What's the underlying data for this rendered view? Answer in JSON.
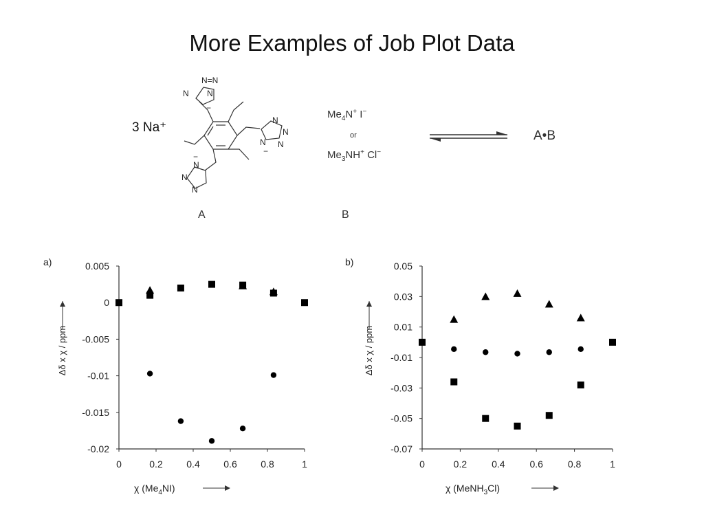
{
  "slide": {
    "title": "More Examples of Job Plot Data"
  },
  "reaction": {
    "prefix": "3 Na⁺",
    "label_a": "A",
    "label_b": "B",
    "reagent1_parts": [
      "Me",
      "4",
      "N",
      "+",
      " I",
      "−"
    ],
    "reagent_or": "or",
    "reagent2_parts": [
      "Me",
      "3",
      "NH",
      "+",
      " Cl",
      "−"
    ],
    "product": "A•B",
    "structure_atoms": [
      "N=N",
      "N",
      "N",
      "−",
      "N",
      "N",
      "N",
      "−",
      "N",
      "N",
      "N",
      "N",
      "−"
    ]
  },
  "chart_data": [
    {
      "type": "scatter",
      "panel_label": "a)",
      "ylabel": "Δδ x χ / ppm",
      "xlabel_parts": [
        "χ (Me",
        "4",
        "NI)"
      ],
      "xlim": [
        0,
        1
      ],
      "ylim": [
        -0.02,
        0.005
      ],
      "xticks": [
        0,
        0.2,
        0.4,
        0.6,
        0.8,
        1
      ],
      "xtick_labels": [
        "0",
        "0.2",
        "0.4",
        "0.6",
        "0.8",
        "1"
      ],
      "yticks": [
        0.005,
        0,
        -0.005,
        -0.01,
        -0.015,
        -0.02
      ],
      "ytick_labels": [
        "0.005",
        "0",
        "-0.005",
        "-0.01",
        "-0.015",
        "-0.02"
      ],
      "grid": false,
      "series": [
        {
          "marker": "triangle",
          "points": [
            [
              0.167,
              0.0017
            ],
            [
              0.667,
              0.0023
            ],
            [
              0.833,
              0.0015
            ]
          ]
        },
        {
          "marker": "square",
          "points": [
            [
              0,
              0
            ],
            [
              0.167,
              0.001
            ],
            [
              0.333,
              0.002
            ],
            [
              0.5,
              0.0025
            ],
            [
              0.667,
              0.0024
            ],
            [
              0.833,
              0.0013
            ],
            [
              1,
              0
            ]
          ]
        },
        {
          "marker": "circle",
          "points": [
            [
              0.167,
              -0.0097
            ],
            [
              0.333,
              -0.0162
            ],
            [
              0.5,
              -0.0189
            ],
            [
              0.667,
              -0.0172
            ],
            [
              0.833,
              -0.0099
            ]
          ]
        }
      ]
    },
    {
      "type": "scatter",
      "panel_label": "b)",
      "ylabel": "Δδ x χ / ppm",
      "xlabel_parts": [
        "χ (MeNH",
        "3",
        "Cl)"
      ],
      "xlim": [
        0,
        1
      ],
      "ylim": [
        -0.07,
        0.05
      ],
      "xticks": [
        0,
        0.2,
        0.4,
        0.6,
        0.8,
        1
      ],
      "xtick_labels": [
        "0",
        "0.2",
        "0.4",
        "0.6",
        "0.8",
        "1"
      ],
      "yticks": [
        0.05,
        0.03,
        0.01,
        -0.01,
        -0.03,
        -0.05,
        -0.07
      ],
      "ytick_labels": [
        "0.05",
        "0.03",
        "0.01",
        "-0.01",
        "-0.03",
        "-0.05",
        "-0.07"
      ],
      "grid": false,
      "series": [
        {
          "marker": "triangle",
          "points": [
            [
              0.167,
              0.015
            ],
            [
              0.333,
              0.03
            ],
            [
              0.5,
              0.032
            ],
            [
              0.667,
              0.025
            ],
            [
              0.833,
              0.016
            ]
          ]
        },
        {
          "marker": "circle",
          "points": [
            [
              0.167,
              -0.0045
            ],
            [
              0.333,
              -0.0065
            ],
            [
              0.5,
              -0.0075
            ],
            [
              0.667,
              -0.0065
            ],
            [
              0.833,
              -0.0045
            ]
          ]
        },
        {
          "marker": "square",
          "points": [
            [
              0,
              0
            ],
            [
              0.167,
              -0.026
            ],
            [
              0.333,
              -0.05
            ],
            [
              0.5,
              -0.055
            ],
            [
              0.667,
              -0.048
            ],
            [
              0.833,
              -0.028
            ],
            [
              1,
              0
            ]
          ]
        }
      ]
    }
  ]
}
